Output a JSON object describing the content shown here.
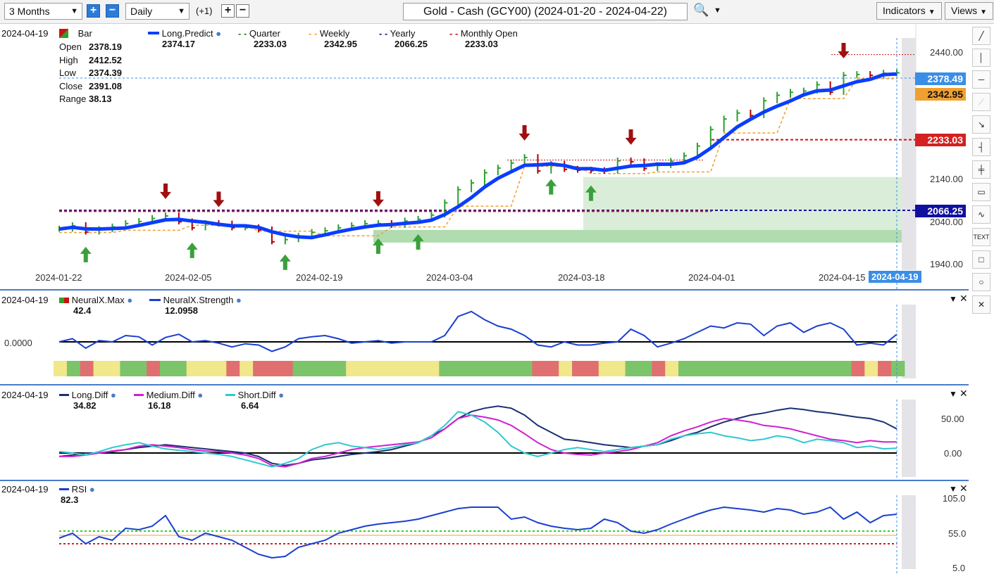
{
  "toolbar": {
    "range": "3 Months",
    "interval": "Daily",
    "offset": "(+1)",
    "symbol": "Gold - Cash (GCY00) (2024-01-20 - 2024-04-22)",
    "indicators": "Indicators",
    "views": "Views"
  },
  "sidetools": [
    "line-tool",
    "vertical-line-tool",
    "horizontal-line-tool",
    "ray-tool",
    "arrow-tool",
    "fib-tool",
    "crosshair-tool",
    "note-tool",
    "wave-tool",
    "TEXT",
    "rectangle-tool",
    "ellipse-tool",
    "close-tool"
  ],
  "main": {
    "date": "2024-04-19",
    "legend": [
      {
        "name": "Bar",
        "value": "",
        "color": "#2ca02c"
      },
      {
        "name": "Long.Predict",
        "value": "2374.17",
        "color": "#0a3dff"
      },
      {
        "name": "Quarter",
        "value": "2233.03",
        "color": "#1a7f1a"
      },
      {
        "name": "Weekly",
        "value": "2342.95",
        "color": "#f0a030"
      },
      {
        "name": "Yearly",
        "value": "2066.25",
        "color": "#1010a0"
      },
      {
        "name": "Monthly Open",
        "value": "2233.03",
        "color": "#cc1111"
      }
    ],
    "ohlc": {
      "open_k": "Open",
      "open": "2378.19",
      "high_k": "High",
      "high": "2412.52",
      "low_k": "Low",
      "low": "2374.39",
      "close_k": "Close",
      "close": "2391.08",
      "range_k": "Range",
      "range": "38.13"
    },
    "price_tags": {
      "current": "2378.49",
      "weekly": "2342.95",
      "monthly": "2233.03",
      "yearly": "2066.25"
    },
    "y_ticks": [
      "2440.00",
      "2140.00",
      "2040.00",
      "1940.00"
    ],
    "x_ticks": [
      "2024-01-22",
      "2024-02-05",
      "2024-02-19",
      "2024-03-04",
      "2024-03-18",
      "2024-04-01",
      "2024-04-15"
    ],
    "cursor_date": "2024-04-19"
  },
  "neural": {
    "date": "2024-04-19",
    "legend": [
      {
        "name": "NeuralX.Max",
        "value": "42.4"
      },
      {
        "name": "NeuralX.Strength",
        "value": "12.0958"
      }
    ],
    "zero_label": "0.0000"
  },
  "diff": {
    "date": "2024-04-19",
    "legend": [
      {
        "name": "Long.Diff",
        "value": "34.82"
      },
      {
        "name": "Medium.Diff",
        "value": "16.18"
      },
      {
        "name": "Short.Diff",
        "value": "6.64"
      }
    ],
    "y_ticks": [
      "50.00",
      "0.00"
    ]
  },
  "rsi": {
    "date": "2024-04-19",
    "legend": [
      {
        "name": "RSI",
        "value": "82.3"
      }
    ],
    "y_ticks": [
      "105.0",
      "55.0",
      "5.0"
    ]
  },
  "chart_data": [
    {
      "type": "candlestick",
      "title": "Gold - Cash (GCY00) (2024-01-20 - 2024-04-22)",
      "x": [
        "2024-01-22",
        "2024-01-23",
        "2024-01-24",
        "2024-01-25",
        "2024-01-26",
        "2024-01-29",
        "2024-01-30",
        "2024-01-31",
        "2024-02-01",
        "2024-02-02",
        "2024-02-05",
        "2024-02-06",
        "2024-02-07",
        "2024-02-08",
        "2024-02-09",
        "2024-02-12",
        "2024-02-13",
        "2024-02-14",
        "2024-02-15",
        "2024-02-16",
        "2024-02-19",
        "2024-02-20",
        "2024-02-21",
        "2024-02-22",
        "2024-02-23",
        "2024-02-26",
        "2024-02-27",
        "2024-02-28",
        "2024-02-29",
        "2024-03-01",
        "2024-03-04",
        "2024-03-05",
        "2024-03-06",
        "2024-03-07",
        "2024-03-08",
        "2024-03-11",
        "2024-03-12",
        "2024-03-13",
        "2024-03-14",
        "2024-03-15",
        "2024-03-18",
        "2024-03-19",
        "2024-03-20",
        "2024-03-21",
        "2024-03-22",
        "2024-03-25",
        "2024-03-26",
        "2024-03-27",
        "2024-03-28",
        "2024-04-01",
        "2024-04-02",
        "2024-04-03",
        "2024-04-04",
        "2024-04-05",
        "2024-04-08",
        "2024-04-09",
        "2024-04-10",
        "2024-04-11",
        "2024-04-12",
        "2024-04-15",
        "2024-04-16",
        "2024-04-17",
        "2024-04-18",
        "2024-04-19"
      ],
      "close": [
        2022,
        2030,
        2015,
        2021,
        2027,
        2035,
        2040,
        2047,
        2053,
        2039,
        2025,
        2035,
        2034,
        2025,
        2025,
        2020,
        1992,
        1997,
        2005,
        2014,
        2018,
        2025,
        2030,
        2035,
        2035,
        2031,
        2041,
        2045,
        2055,
        2084,
        2115,
        2131,
        2155,
        2166,
        2178,
        2191,
        2159,
        2175,
        2163,
        2161,
        2160,
        2159,
        2183,
        2181,
        2165,
        2172,
        2182,
        2195,
        2218,
        2257,
        2282,
        2296,
        2290,
        2325,
        2338,
        2345,
        2348,
        2363,
        2345,
        2385,
        2387,
        2385,
        2390,
        2391
      ],
      "ylim": [
        1940,
        2460
      ],
      "levels": {
        "Quarter": 2233.03,
        "Weekly": 2342.95,
        "Yearly": 2066.25,
        "Monthly Open": 2233.03
      },
      "current": 2378.49
    },
    {
      "type": "line",
      "series": [
        {
          "name": "NeuralX.Strength",
          "values": [
            0,
            5,
            -10,
            2,
            0,
            10,
            8,
            -5,
            7,
            12,
            0,
            2,
            -2,
            -8,
            -3,
            -5,
            -15,
            -8,
            5,
            8,
            10,
            5,
            -2,
            0,
            2,
            -2,
            0,
            0,
            0,
            10,
            40,
            48,
            35,
            25,
            20,
            10,
            -5,
            -8,
            0,
            -5,
            -5,
            -2,
            0,
            20,
            10,
            -8,
            -2,
            5,
            15,
            25,
            22,
            30,
            28,
            10,
            25,
            30,
            15,
            25,
            30,
            20,
            -5,
            -2,
            -5,
            12
          ]
        }
      ]
    },
    {
      "type": "line",
      "series": [
        {
          "name": "Long.Diff",
          "values": [
            -5,
            -3,
            0,
            0,
            2,
            5,
            8,
            10,
            12,
            10,
            8,
            6,
            4,
            2,
            0,
            -5,
            -15,
            -18,
            -15,
            -10,
            -8,
            -5,
            -2,
            0,
            2,
            5,
            10,
            15,
            25,
            35,
            50,
            60,
            65,
            68,
            65,
            55,
            40,
            30,
            20,
            18,
            15,
            12,
            10,
            8,
            10,
            12,
            18,
            25,
            30,
            38,
            45,
            50,
            55,
            58,
            62,
            65,
            63,
            60,
            58,
            55,
            52,
            50,
            45,
            35
          ]
        },
        {
          "name": "Medium.Diff",
          "values": [
            -5,
            -5,
            -3,
            0,
            3,
            5,
            10,
            12,
            10,
            8,
            5,
            3,
            2,
            0,
            -3,
            -8,
            -18,
            -20,
            -15,
            -8,
            -5,
            0,
            5,
            8,
            10,
            12,
            14,
            16,
            22,
            35,
            50,
            55,
            52,
            48,
            40,
            28,
            15,
            5,
            0,
            -2,
            -3,
            0,
            2,
            5,
            10,
            15,
            25,
            32,
            38,
            45,
            50,
            48,
            45,
            40,
            38,
            35,
            30,
            25,
            20,
            18,
            15,
            18,
            16,
            16
          ]
        },
        {
          "name": "Short.Diff",
          "values": [
            2,
            0,
            -3,
            2,
            8,
            12,
            15,
            10,
            6,
            4,
            2,
            0,
            -2,
            -5,
            -10,
            -15,
            -20,
            -15,
            -8,
            5,
            12,
            15,
            10,
            8,
            5,
            8,
            12,
            15,
            25,
            40,
            60,
            55,
            45,
            30,
            10,
            0,
            -5,
            0,
            5,
            8,
            5,
            2,
            5,
            8,
            10,
            12,
            20,
            25,
            28,
            30,
            25,
            22,
            18,
            20,
            25,
            22,
            15,
            20,
            18,
            15,
            8,
            10,
            6,
            7
          ]
        }
      ],
      "ylim": [
        -15,
        70
      ]
    },
    {
      "type": "line",
      "series": [
        {
          "name": "RSI",
          "values": [
            48,
            55,
            40,
            50,
            45,
            62,
            60,
            65,
            80,
            50,
            45,
            55,
            50,
            45,
            35,
            25,
            20,
            22,
            35,
            40,
            45,
            55,
            60,
            65,
            68,
            70,
            72,
            75,
            80,
            85,
            90,
            92,
            92,
            92,
            75,
            78,
            70,
            65,
            62,
            60,
            62,
            75,
            70,
            58,
            55,
            60,
            68,
            75,
            82,
            88,
            92,
            90,
            88,
            85,
            90,
            88,
            82,
            85,
            92,
            75,
            85,
            70,
            80,
            82
          ]
        }
      ],
      "ylim": [
        5,
        105
      ],
      "levels": [
        50,
        58,
        62
      ]
    }
  ]
}
